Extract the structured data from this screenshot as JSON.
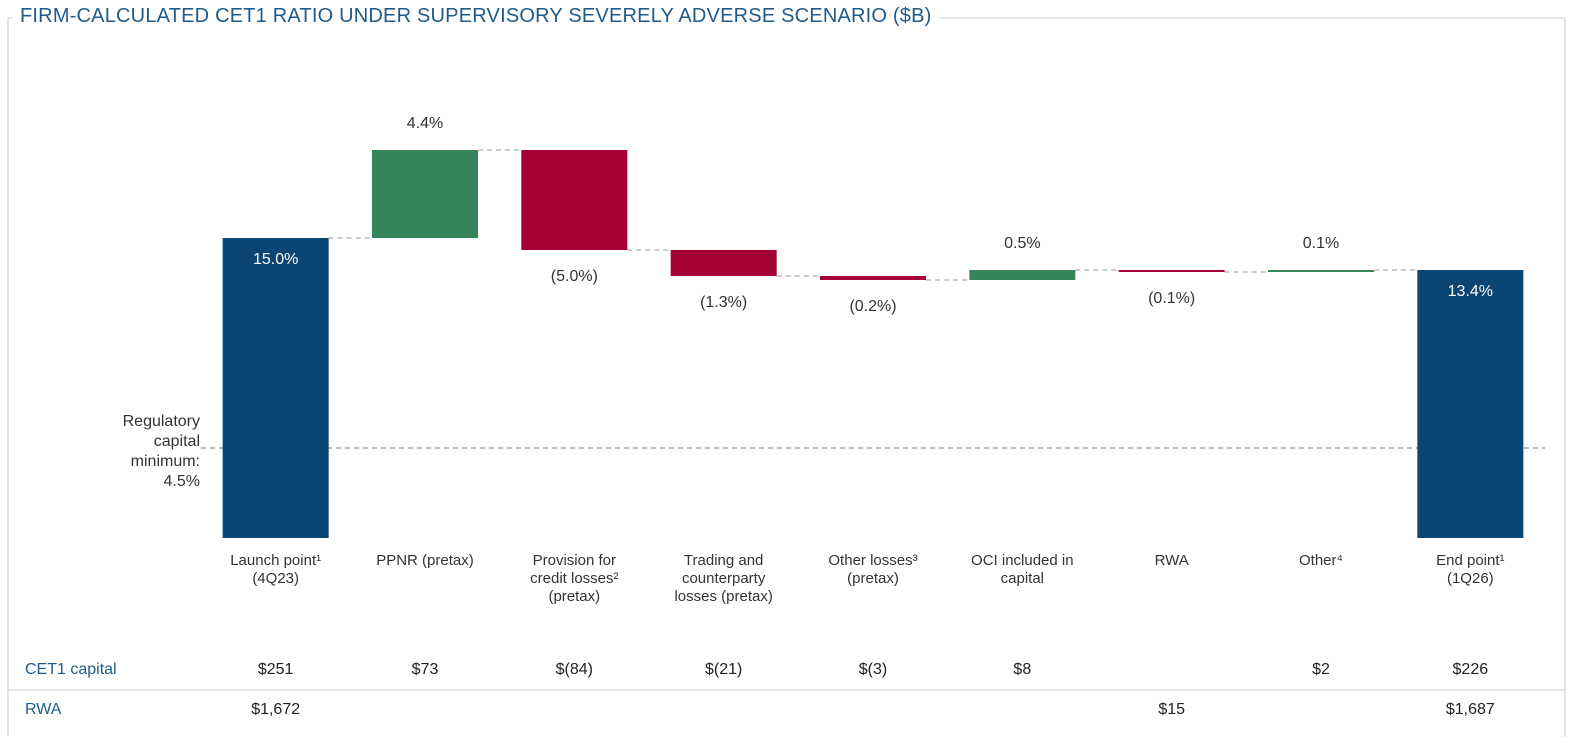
{
  "chart_data": {
    "type": "waterfall",
    "title": "FIRM-CALCULATED CET1 RATIO UNDER SUPERVISORY SEVERELY ADVERSE SCENARIO ($B)",
    "categories": [
      "Launch point¹\n(4Q23)",
      "PPNR (pretax)",
      "Provision for\ncredit losses²\n(pretax)",
      "Trading and\ncounterparty\nlosses (pretax)",
      "Other losses³\n(pretax)",
      "OCI included in\ncapital",
      "RWA",
      "Other⁴",
      "End point¹\n(1Q26)"
    ],
    "measure": [
      "total",
      "relative",
      "relative",
      "relative",
      "relative",
      "relative",
      "relative",
      "relative",
      "total"
    ],
    "values": [
      15.0,
      4.4,
      -5.0,
      -1.3,
      -0.2,
      0.5,
      -0.1,
      0.1,
      13.4
    ],
    "value_labels": [
      "15.0%",
      "4.4%",
      "(5.0%)",
      "(1.3%)",
      "(0.2%)",
      "0.5%",
      "(0.1%)",
      "0.1%",
      "13.4%"
    ],
    "colors": {
      "total": "#0b4574",
      "increase": "#35845a",
      "decrease": "#a50034"
    },
    "ylim": [
      0,
      20
    ],
    "reference_line": {
      "value": 4.5,
      "label": "Regulatory\ncapital\nminimum:\n4.5%"
    },
    "table": {
      "rows": [
        {
          "name": "CET1 capital",
          "values": [
            "$251",
            "$73",
            "$(84)",
            "$(21)",
            "$(3)",
            "$8",
            null,
            "$2",
            "$226"
          ]
        },
        {
          "name": "RWA",
          "values": [
            "$1,672",
            null,
            null,
            null,
            null,
            null,
            "$15",
            null,
            "$1,687"
          ]
        }
      ]
    }
  }
}
